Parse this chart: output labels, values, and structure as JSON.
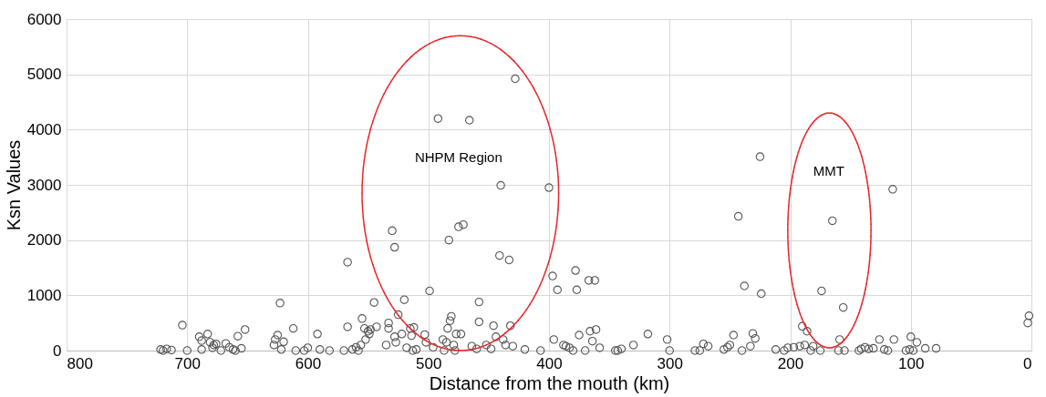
{
  "chart_data": {
    "type": "scatter",
    "xlabel": "Distance from the mouth (km)",
    "ylabel": "Ksn Values",
    "xlim": [
      800,
      0
    ],
    "ylim": [
      0,
      6000
    ],
    "xticks": [
      800,
      700,
      600,
      500,
      400,
      300,
      200,
      100,
      0
    ],
    "yticks": [
      0,
      1000,
      2000,
      3000,
      4000,
      5000,
      6000
    ],
    "grid": true,
    "marker": "circle",
    "series": [
      {
        "color": "#555555",
        "x": [
          722,
          720,
          717,
          713,
          704,
          700,
          690,
          688,
          688,
          683,
          681,
          679,
          678,
          676,
          672,
          668,
          665,
          662,
          660,
          658,
          655,
          652,
          628,
          627,
          625,
          623,
          622,
          620,
          612,
          610,
          603,
          600,
          592,
          590,
          582,
          570,
          567,
          567,
          563,
          560,
          558,
          556,
          555,
          553,
          552,
          550,
          549,
          548,
          545,
          543,
          535,
          533,
          533,
          530,
          528,
          528,
          527,
          525,
          522,
          520,
          518,
          515,
          514,
          513,
          512,
          510,
          503,
          502,
          499,
          496,
          492,
          488,
          487,
          485,
          484,
          483,
          482,
          481,
          479,
          478,
          477,
          475,
          473,
          471,
          466,
          464,
          460,
          458,
          458,
          452,
          448,
          446,
          444,
          441,
          440,
          438,
          436,
          433,
          432,
          430,
          428,
          420,
          407,
          400,
          397,
          396,
          393,
          388,
          386,
          383,
          380,
          378,
          377,
          375,
          370,
          367,
          366,
          364,
          362,
          361,
          358,
          345,
          343,
          340,
          330,
          318,
          302,
          300,
          279,
          275,
          272,
          268,
          255,
          252,
          250,
          247,
          243,
          240,
          238,
          233,
          231,
          229,
          225,
          224,
          212,
          205,
          202,
          197,
          192,
          190,
          188,
          186,
          183,
          181,
          174,
          175,
          165,
          160,
          159,
          156,
          155,
          143,
          141,
          138,
          135,
          131,
          126,
          122,
          119,
          115,
          114,
          104,
          101,
          100,
          98,
          95,
          88,
          79,
          3,
          2
        ],
        "values": [
          20,
          0,
          30,
          10,
          460,
          0,
          250,
          180,
          20,
          300,
          150,
          50,
          100,
          120,
          0,
          130,
          60,
          20,
          0,
          260,
          40,
          380,
          100,
          200,
          280,
          860,
          20,
          160,
          400,
          0,
          0,
          50,
          300,
          20,
          0,
          0,
          1600,
          430,
          20,
          60,
          0,
          100,
          580,
          400,
          200,
          350,
          300,
          380,
          870,
          430,
          100,
          500,
          400,
          2170,
          1870,
          250,
          150,
          650,
          300,
          920,
          50,
          400,
          270,
          0,
          420,
          20,
          290,
          150,
          1080,
          60,
          4200,
          200,
          0,
          150,
          400,
          2000,
          540,
          620,
          100,
          0,
          300,
          2240,
          300,
          2280,
          4170,
          80,
          30,
          880,
          520,
          100,
          30,
          450,
          250,
          1720,
          2990,
          200,
          100,
          1640,
          450,
          80,
          4920,
          20,
          0,
          2950,
          1350,
          200,
          1100,
          100,
          80,
          50,
          0,
          1450,
          1100,
          280,
          0,
          1270,
          350,
          170,
          1270,
          380,
          50,
          0,
          0,
          30,
          100,
          300,
          200,
          0,
          0,
          0,
          120,
          80,
          20,
          60,
          100,
          280,
          2430,
          0,
          1170,
          80,
          310,
          220,
          3510,
          1030,
          20,
          0,
          50,
          60,
          80,
          440,
          100,
          350,
          0,
          80,
          1080,
          0,
          2350,
          0,
          200,
          780,
          0,
          0,
          30,
          60,
          30,
          40,
          200,
          20,
          0,
          2920,
          200,
          0,
          20,
          250,
          0,
          150,
          40,
          40,
          500,
          630
        ]
      }
    ],
    "annotations": [
      "NHPM Region",
      "MMT"
    ]
  }
}
